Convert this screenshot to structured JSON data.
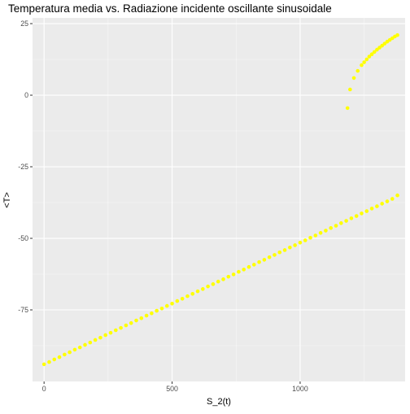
{
  "chart_data": {
    "type": "scatter",
    "title": "Temperatura media vs. Radiazione incidente oscillante sinusoidale",
    "xlabel": "S_2(t)",
    "ylabel": "<T>",
    "xlim": [
      -45,
      1410
    ],
    "ylim": [
      -100,
      27
    ],
    "x_ticks": [
      {
        "value": 0,
        "label": "0"
      },
      {
        "value": 500,
        "label": "500"
      },
      {
        "value": 1000,
        "label": "1000"
      }
    ],
    "y_ticks": [
      {
        "value": 25,
        "label": "25"
      },
      {
        "value": 0,
        "label": "0"
      },
      {
        "value": -25,
        "label": "-25"
      },
      {
        "value": -50,
        "label": "-50"
      },
      {
        "value": -75,
        "label": "-75"
      }
    ],
    "grid": true,
    "background_color": "#ebebeb",
    "grid_color": "#ffffff",
    "point_color": "#ffff00",
    "series": [
      {
        "values": [
          [
            0,
            -94
          ],
          [
            20,
            -93.2
          ],
          [
            40,
            -92.3
          ],
          [
            60,
            -91.5
          ],
          [
            80,
            -90.6
          ],
          [
            100,
            -89.8
          ],
          [
            120,
            -88.9
          ],
          [
            140,
            -88.1
          ],
          [
            160,
            -87.2
          ],
          [
            180,
            -86.4
          ],
          [
            200,
            -85.5
          ],
          [
            220,
            -84.7
          ],
          [
            240,
            -83.8
          ],
          [
            260,
            -83.0
          ],
          [
            280,
            -82.1
          ],
          [
            300,
            -81.3
          ],
          [
            320,
            -80.4
          ],
          [
            340,
            -79.6
          ],
          [
            360,
            -78.7
          ],
          [
            380,
            -77.9
          ],
          [
            400,
            -77.0
          ],
          [
            420,
            -76.2
          ],
          [
            440,
            -75.3
          ],
          [
            460,
            -74.5
          ],
          [
            480,
            -73.6
          ],
          [
            500,
            -72.8
          ],
          [
            520,
            -71.9
          ],
          [
            540,
            -71.1
          ],
          [
            560,
            -70.2
          ],
          [
            580,
            -69.4
          ],
          [
            600,
            -68.5
          ],
          [
            620,
            -67.7
          ],
          [
            640,
            -66.8
          ],
          [
            660,
            -66.0
          ],
          [
            680,
            -65.1
          ],
          [
            700,
            -64.3
          ],
          [
            720,
            -63.4
          ],
          [
            740,
            -62.6
          ],
          [
            760,
            -61.7
          ],
          [
            780,
            -60.9
          ],
          [
            800,
            -60.0
          ],
          [
            820,
            -59.2
          ],
          [
            840,
            -58.3
          ],
          [
            860,
            -57.5
          ],
          [
            880,
            -56.6
          ],
          [
            900,
            -55.8
          ],
          [
            920,
            -54.9
          ],
          [
            940,
            -54.1
          ],
          [
            960,
            -53.2
          ],
          [
            980,
            -52.4
          ],
          [
            1000,
            -51.5
          ],
          [
            1020,
            -50.7
          ],
          [
            1040,
            -49.8
          ],
          [
            1060,
            -49.0
          ],
          [
            1080,
            -48.1
          ],
          [
            1100,
            -47.3
          ],
          [
            1120,
            -46.4
          ],
          [
            1140,
            -45.6
          ],
          [
            1160,
            -44.7
          ],
          [
            1180,
            -43.9
          ],
          [
            1200,
            -43.0
          ],
          [
            1220,
            -42.2
          ],
          [
            1240,
            -41.3
          ],
          [
            1260,
            -40.5
          ],
          [
            1280,
            -39.6
          ],
          [
            1300,
            -38.8
          ],
          [
            1320,
            -37.9
          ],
          [
            1340,
            -37.1
          ],
          [
            1360,
            -36.2
          ],
          [
            1380,
            -35.0
          ],
          [
            1185,
            -4.5
          ],
          [
            1195,
            2.0
          ],
          [
            1210,
            6.0
          ],
          [
            1225,
            8.5
          ],
          [
            1240,
            10.5
          ],
          [
            1250,
            11.5
          ],
          [
            1260,
            12.5
          ],
          [
            1270,
            13.5
          ],
          [
            1280,
            14.3
          ],
          [
            1290,
            15.1
          ],
          [
            1300,
            15.9
          ],
          [
            1310,
            16.6
          ],
          [
            1320,
            17.3
          ],
          [
            1330,
            18.0
          ],
          [
            1340,
            18.7
          ],
          [
            1350,
            19.3
          ],
          [
            1360,
            19.9
          ],
          [
            1370,
            20.5
          ],
          [
            1380,
            21.0
          ]
        ]
      }
    ]
  }
}
